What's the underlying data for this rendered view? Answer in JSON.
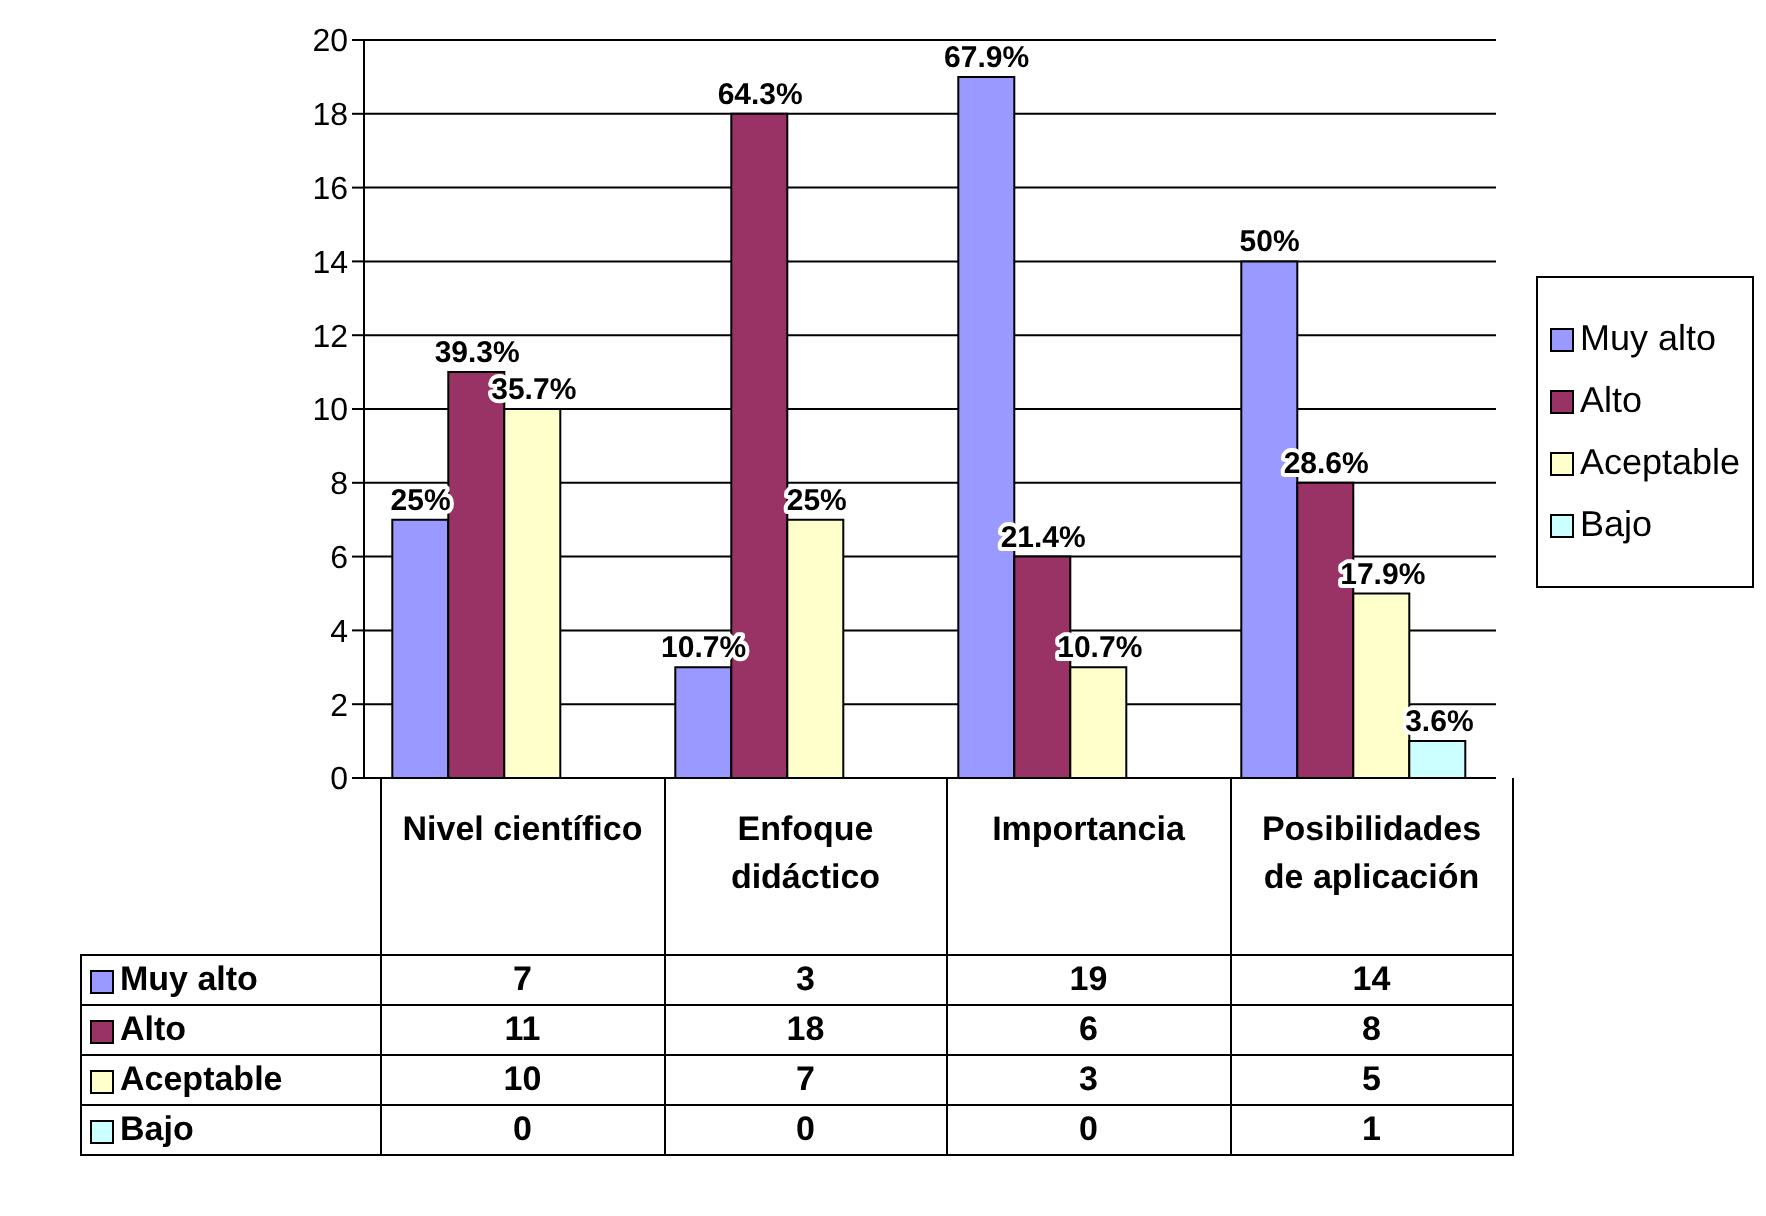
{
  "chart_data": {
    "type": "bar",
    "categories": [
      "Nivel científico",
      "Enfoque didáctico",
      "Importancia",
      "Posibilidades de aplicación"
    ],
    "series": [
      {
        "name": "Muy alto",
        "color": "#9999ff",
        "values": [
          7,
          3,
          19,
          14
        ],
        "value_labels": [
          "7",
          "3",
          "19",
          "14"
        ]
      },
      {
        "name": "Alto",
        "color": "#993366",
        "values": [
          11,
          18,
          6,
          8
        ],
        "value_labels": [
          "11",
          "18",
          "6",
          "8"
        ]
      },
      {
        "name": "Aceptable",
        "color": "#ffffcc",
        "values": [
          10,
          7,
          3,
          5
        ],
        "value_labels": [
          "10",
          "7",
          "3",
          "5"
        ]
      },
      {
        "name": "Bajo",
        "color": "#ccffff",
        "values": [
          0,
          0,
          0,
          1
        ],
        "value_labels": [
          "0",
          "0",
          "0",
          "1"
        ]
      }
    ],
    "annotations": [
      "25%",
      "39.3%",
      "35.7%",
      "10.7%",
      "64.3%",
      "25%",
      "67.9%",
      "21.4%",
      "10.7%",
      "50%",
      "28.6%",
      "17.9%",
      "3.6%"
    ],
    "ylim": [
      0,
      20
    ],
    "yticks": [
      0,
      2,
      4,
      6,
      8,
      10,
      12,
      14,
      16,
      18,
      20
    ],
    "grid": "y",
    "legend": "right",
    "data_labels": true
  }
}
